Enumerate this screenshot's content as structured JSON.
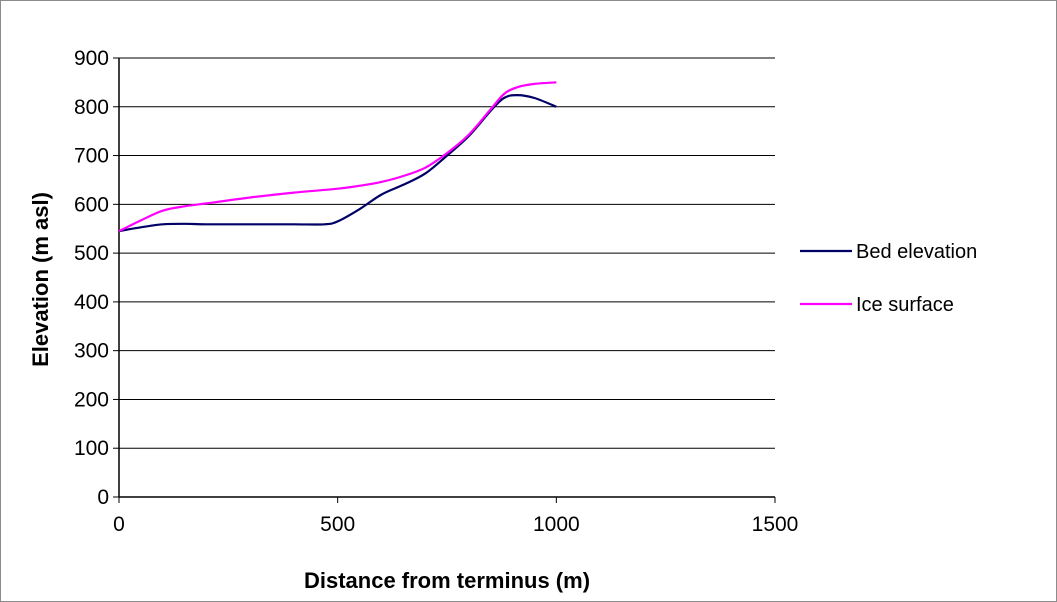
{
  "chart_data": {
    "type": "line",
    "title": "",
    "xlabel": "Distance from terminus (m)",
    "ylabel": "Elevation (m asl)",
    "xlim": [
      0,
      1500
    ],
    "ylim": [
      0,
      900
    ],
    "x_ticks": [
      0,
      500,
      1000,
      1500
    ],
    "y_ticks": [
      0,
      100,
      200,
      300,
      400,
      500,
      600,
      700,
      800,
      900
    ],
    "grid": "horizontal",
    "legend_position": "right",
    "series": [
      {
        "name": "Bed elevation",
        "color": "#000066",
        "x": [
          0,
          50,
          100,
          150,
          200,
          300,
          400,
          470,
          500,
          550,
          600,
          650,
          700,
          750,
          800,
          850,
          880,
          910,
          950,
          1000
        ],
        "y": [
          545,
          553,
          559,
          560,
          559,
          559,
          559,
          559,
          565,
          590,
          620,
          640,
          663,
          700,
          740,
          792,
          818,
          824,
          818,
          800
        ]
      },
      {
        "name": "Ice surface",
        "color": "#ff00ff",
        "x": [
          0,
          50,
          100,
          150,
          200,
          300,
          400,
          500,
          550,
          600,
          650,
          700,
          750,
          800,
          850,
          880,
          910,
          950,
          1000
        ],
        "y": [
          545,
          567,
          587,
          596,
          602,
          614,
          624,
          632,
          638,
          646,
          658,
          675,
          705,
          743,
          795,
          826,
          840,
          847,
          850
        ]
      }
    ]
  }
}
